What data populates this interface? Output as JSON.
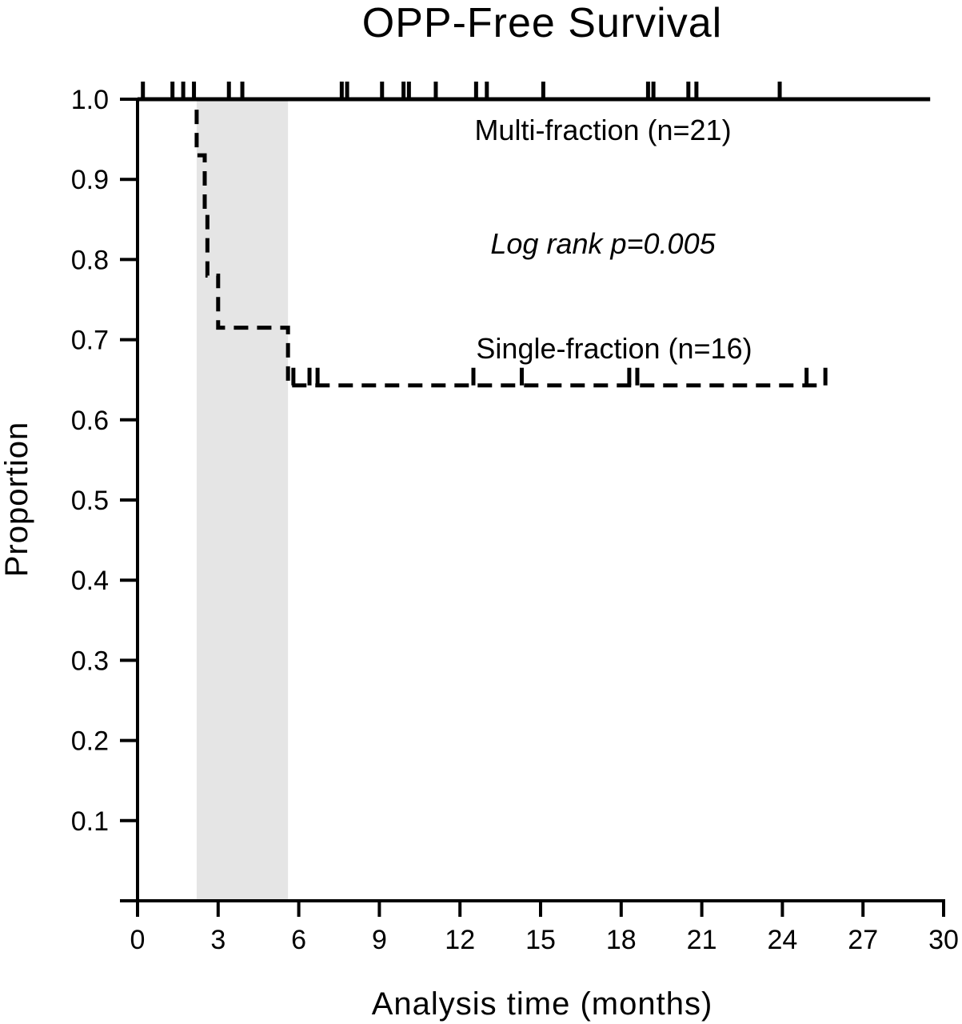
{
  "chart_data": {
    "type": "line",
    "subtype": "kaplan-meier",
    "title": "OPP-Free Survival",
    "xlabel": "Analysis time (months)",
    "ylabel": "Proportion",
    "xlim": [
      0,
      30
    ],
    "ylim": [
      0,
      1.0
    ],
    "x_ticks": [
      0,
      3,
      6,
      9,
      12,
      15,
      18,
      21,
      24,
      27,
      30
    ],
    "x_tick_labels": [
      "0",
      "3",
      "6",
      "9",
      "12",
      "15",
      "18",
      "21",
      "24",
      "27",
      "30"
    ],
    "y_ticks": [
      0.1,
      0.2,
      0.3,
      0.4,
      0.5,
      0.6,
      0.7,
      0.8,
      0.9,
      1.0
    ],
    "y_tick_labels": [
      "0.1",
      "0.2",
      "0.3",
      "0.4",
      "0.5",
      "0.6",
      "0.7",
      "0.8",
      "0.9",
      "1.0"
    ],
    "grid": false,
    "shaded_region": {
      "x": [
        2.2,
        5.6
      ],
      "color": "#e5e5e5"
    },
    "series": [
      {
        "name": "Multi-fraction (n=21)",
        "line_style": "solid",
        "color": "#000000",
        "steps": [
          [
            0,
            1.0
          ],
          [
            29.5,
            1.0
          ]
        ],
        "censor_times": [
          0.2,
          1.3,
          1.7,
          2.1,
          3.4,
          3.9,
          7.6,
          7.8,
          9.1,
          9.9,
          10.1,
          11.1,
          12.6,
          13.0,
          15.1,
          19.0,
          19.2,
          20.5,
          20.8,
          23.9
        ]
      },
      {
        "name": "Single-fraction (n=16)",
        "line_style": "dashed",
        "color": "#000000",
        "steps": [
          [
            0,
            1.0
          ],
          [
            2.2,
            1.0
          ],
          [
            2.2,
            0.93
          ],
          [
            2.5,
            0.93
          ],
          [
            2.5,
            0.86
          ],
          [
            2.6,
            0.86
          ],
          [
            2.6,
            0.78
          ],
          [
            3.0,
            0.78
          ],
          [
            3.0,
            0.715
          ],
          [
            5.6,
            0.715
          ],
          [
            5.6,
            0.643
          ],
          [
            25.6,
            0.643
          ]
        ],
        "censor_times": [
          5.8,
          6.4,
          6.7,
          12.5,
          14.3,
          18.3,
          18.6,
          24.9,
          25.6
        ]
      }
    ],
    "annotations": [
      {
        "text": "Multi-fraction (n=21)",
        "style": "normal"
      },
      {
        "text": "Log rank p=0.005",
        "style": "italic"
      },
      {
        "text": "Single-fraction (n=16)",
        "style": "normal"
      }
    ]
  }
}
